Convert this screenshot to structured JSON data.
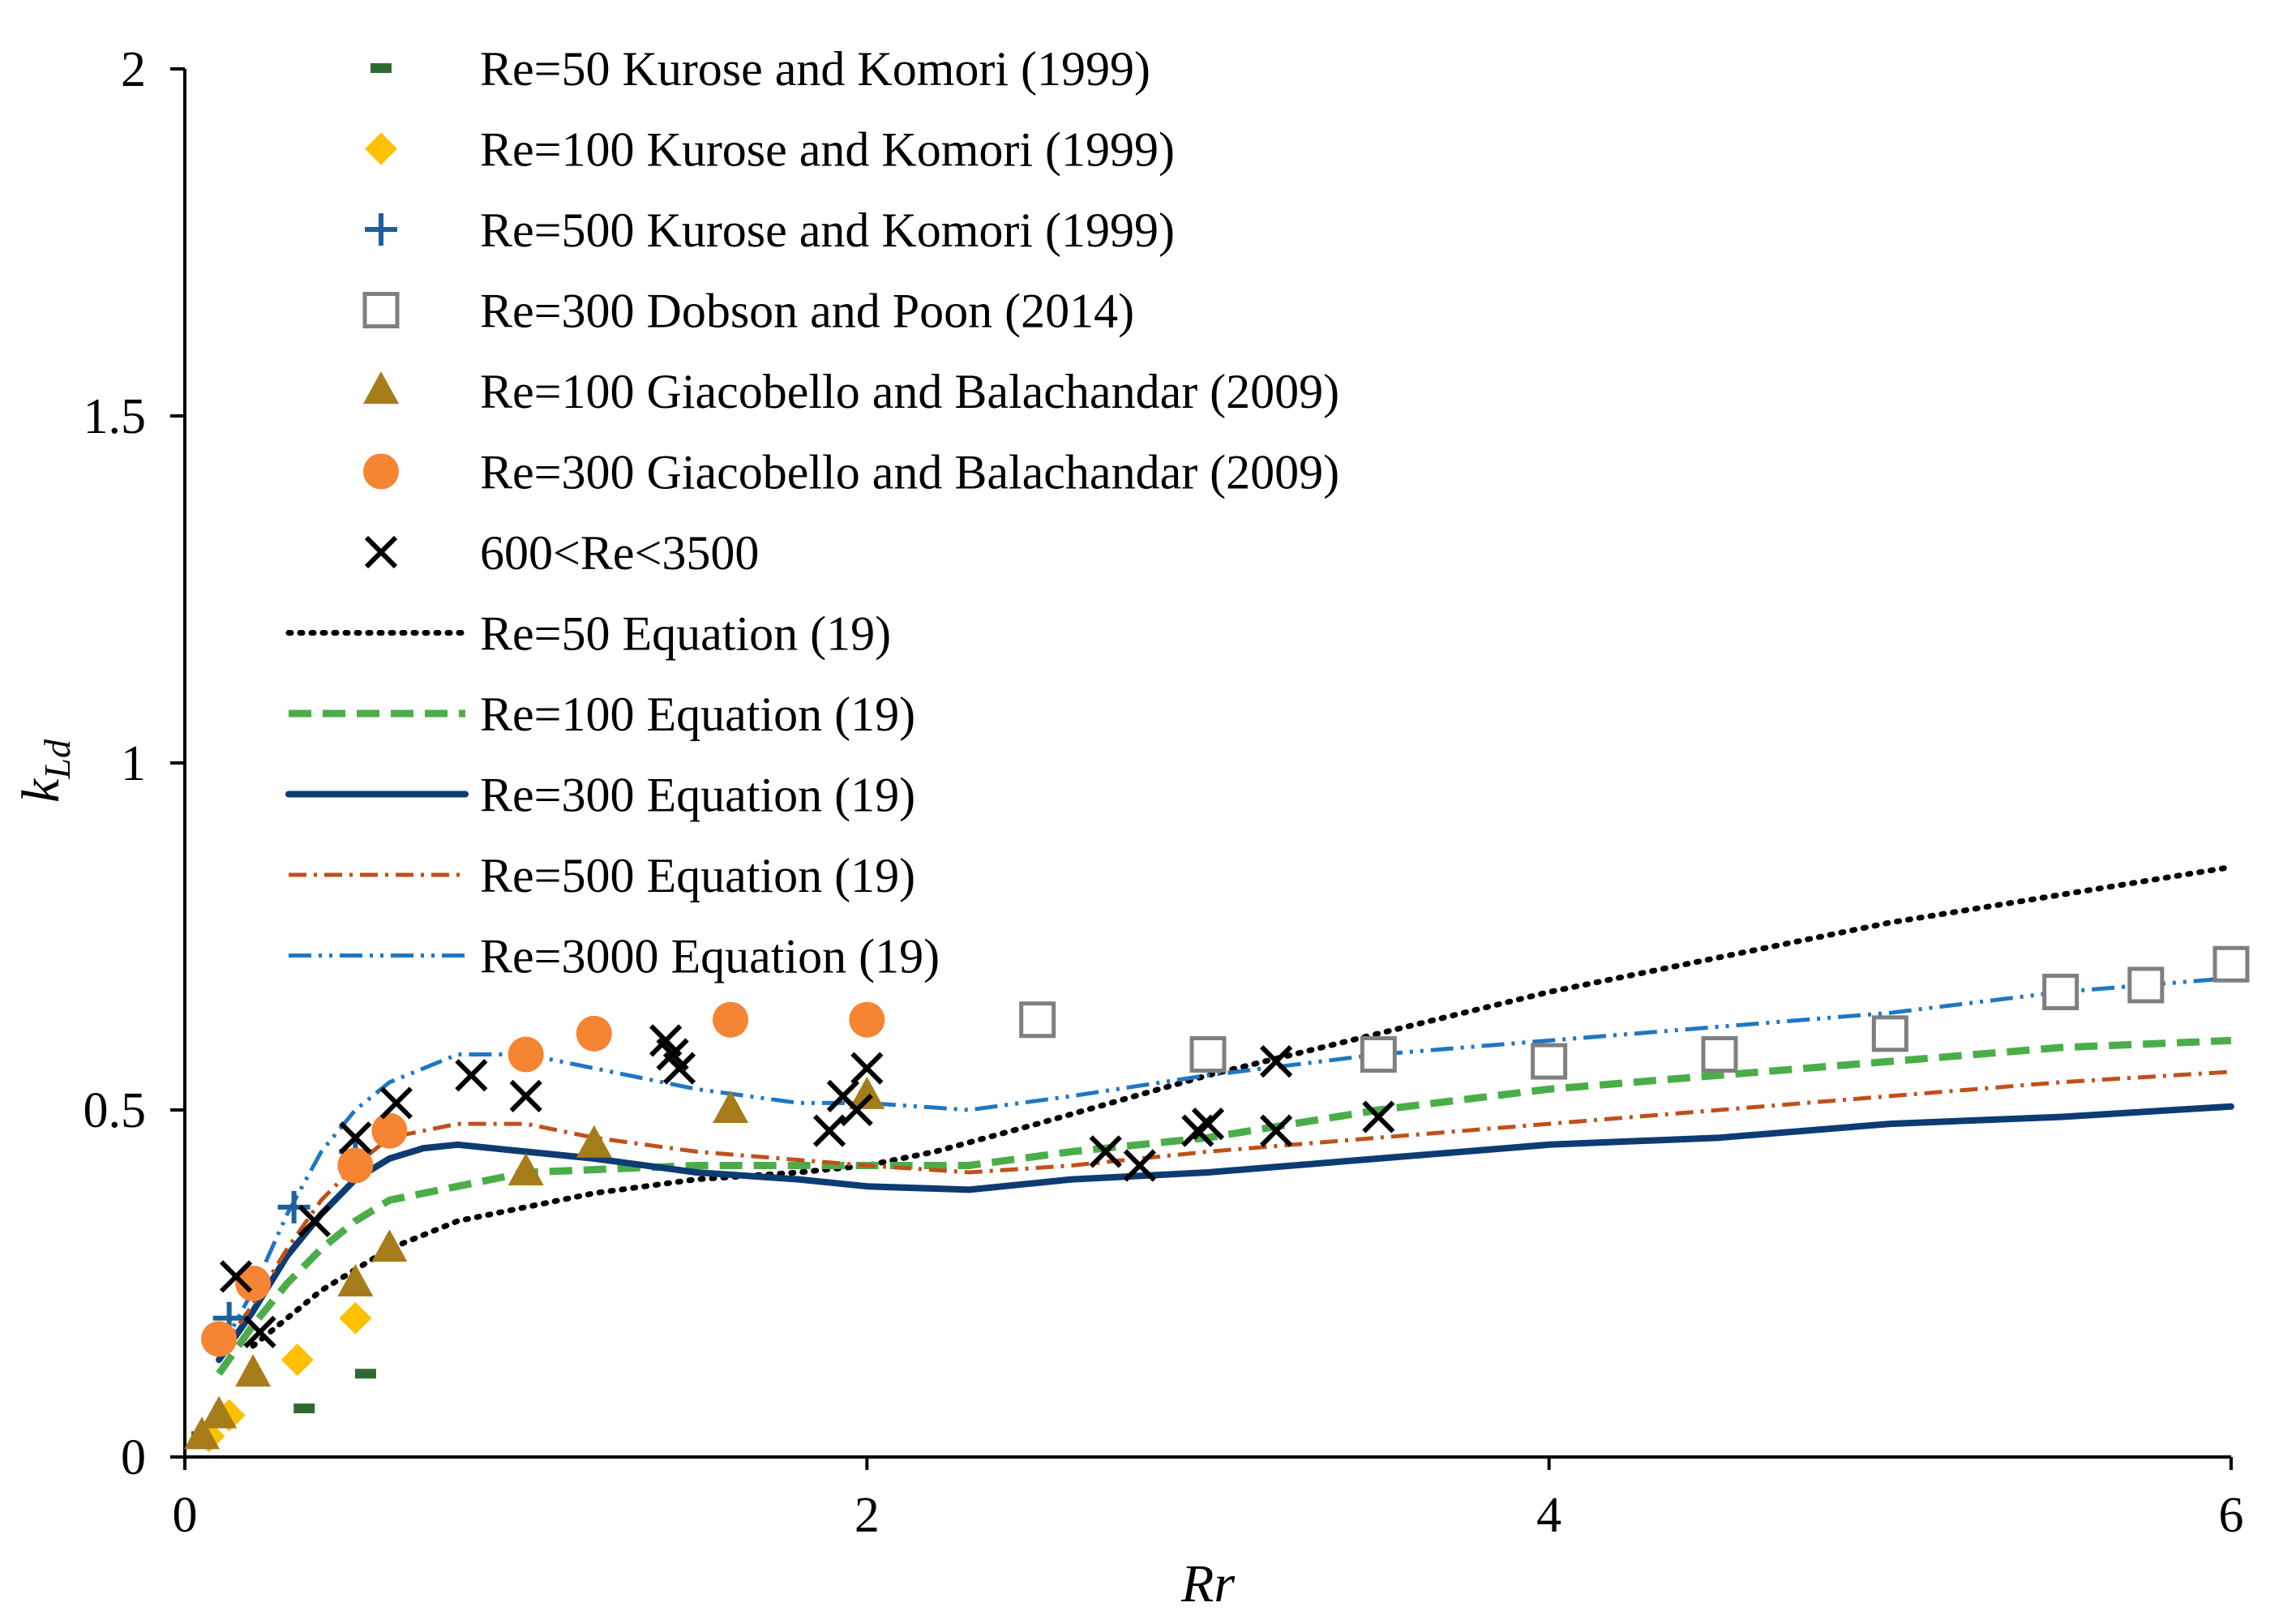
{
  "chart_data": {
    "type": "scatter",
    "title": "",
    "xlabel": "Rr",
    "ylabel_main": "k",
    "ylabel_sub": "Ld",
    "xlim": [
      0,
      6
    ],
    "ylim": [
      0,
      2
    ],
    "xticks": [
      0,
      2,
      4,
      6
    ],
    "xtick_labels": [
      "0",
      "2",
      "4",
      "6"
    ],
    "yticks": [
      0,
      0.5,
      1,
      1.5,
      2
    ],
    "ytick_labels": [
      "0",
      "0.5",
      "1",
      "1.5",
      "2"
    ],
    "grid": false,
    "legend_position": "top-left",
    "series": [
      {
        "name": "Re=50 Kurose and Komori (1999)",
        "kind": "marker",
        "marker": "dash",
        "color": "#2e6b30",
        "points": [
          [
            0.05,
            0.03
          ],
          [
            0.35,
            0.07
          ],
          [
            0.53,
            0.12
          ]
        ]
      },
      {
        "name": "Re=100 Kurose and Komori (1999)",
        "kind": "marker",
        "marker": "diamond",
        "color": "#ffc000",
        "points": [
          [
            0.07,
            0.03
          ],
          [
            0.13,
            0.06
          ],
          [
            0.33,
            0.14
          ],
          [
            0.5,
            0.2
          ]
        ]
      },
      {
        "name": "Re=500 Kurose and Komori (1999)",
        "kind": "marker",
        "marker": "plus",
        "color": "#1f5f9a",
        "points": [
          [
            0.13,
            0.2
          ],
          [
            0.32,
            0.36
          ],
          [
            0.5,
            0.44
          ]
        ]
      },
      {
        "name": "Re=300 Dobson  and Poon (2014)",
        "kind": "marker",
        "marker": "square",
        "color": "#7f7f7f",
        "points": [
          [
            2.5,
            0.63
          ],
          [
            3.0,
            0.58
          ],
          [
            3.5,
            0.58
          ],
          [
            4.0,
            0.57
          ],
          [
            4.5,
            0.58
          ],
          [
            5.0,
            0.61
          ],
          [
            5.5,
            0.67
          ],
          [
            5.75,
            0.68
          ],
          [
            6.0,
            0.71
          ]
        ]
      },
      {
        "name": "Re=100 Giacobello and Balachandar (2009)",
        "kind": "marker",
        "marker": "triangle",
        "color": "#a67c1a",
        "points": [
          [
            0.05,
            0.03
          ],
          [
            0.1,
            0.06
          ],
          [
            0.2,
            0.12
          ],
          [
            0.5,
            0.25
          ],
          [
            0.6,
            0.3
          ],
          [
            1.0,
            0.41
          ],
          [
            1.2,
            0.45
          ],
          [
            1.6,
            0.5
          ],
          [
            2.0,
            0.52
          ]
        ]
      },
      {
        "name": "Re=300 Giacobello and Balachandar (2009)",
        "kind": "marker",
        "marker": "circle",
        "color": "#f58433",
        "points": [
          [
            0.1,
            0.17
          ],
          [
            0.2,
            0.25
          ],
          [
            0.5,
            0.42
          ],
          [
            0.6,
            0.47
          ],
          [
            1.0,
            0.58
          ],
          [
            1.2,
            0.61
          ],
          [
            1.6,
            0.63
          ],
          [
            2.0,
            0.63
          ]
        ]
      },
      {
        "name": "600<Re<3500",
        "kind": "marker",
        "marker": "cross",
        "color": "#000000",
        "points": [
          [
            0.15,
            0.26
          ],
          [
            0.22,
            0.18
          ],
          [
            0.38,
            0.34
          ],
          [
            0.5,
            0.46
          ],
          [
            0.62,
            0.51
          ],
          [
            0.84,
            0.55
          ],
          [
            1.0,
            0.52
          ],
          [
            1.41,
            0.6
          ],
          [
            1.43,
            0.58
          ],
          [
            1.45,
            0.56
          ],
          [
            1.89,
            0.47
          ],
          [
            1.93,
            0.52
          ],
          [
            1.97,
            0.5
          ],
          [
            2.0,
            0.56
          ],
          [
            2.7,
            0.44
          ],
          [
            2.8,
            0.42
          ],
          [
            2.97,
            0.47
          ],
          [
            3.0,
            0.48
          ],
          [
            3.2,
            0.57
          ],
          [
            3.2,
            0.47
          ],
          [
            3.5,
            0.49
          ]
        ]
      },
      {
        "name": "Re=50 Equation (19)",
        "kind": "line",
        "dash": "dot",
        "color": "#000000",
        "points": [
          [
            0.2,
            0.16
          ],
          [
            0.4,
            0.24
          ],
          [
            0.6,
            0.3
          ],
          [
            0.8,
            0.34
          ],
          [
            1.0,
            0.36
          ],
          [
            1.2,
            0.38
          ],
          [
            1.5,
            0.4
          ],
          [
            1.8,
            0.41
          ],
          [
            2.0,
            0.42
          ],
          [
            2.2,
            0.44
          ],
          [
            2.5,
            0.48
          ],
          [
            3.0,
            0.55
          ],
          [
            3.5,
            0.61
          ],
          [
            4.0,
            0.67
          ],
          [
            4.5,
            0.72
          ],
          [
            5.0,
            0.77
          ],
          [
            5.5,
            0.81
          ],
          [
            6.0,
            0.85
          ]
        ]
      },
      {
        "name": "Re=100 Equation (19)",
        "kind": "line",
        "dash": "dash",
        "color": "#4aae48",
        "points": [
          [
            0.1,
            0.12
          ],
          [
            0.2,
            0.19
          ],
          [
            0.3,
            0.25
          ],
          [
            0.4,
            0.3
          ],
          [
            0.5,
            0.34
          ],
          [
            0.6,
            0.37
          ],
          [
            0.8,
            0.39
          ],
          [
            1.0,
            0.41
          ],
          [
            1.5,
            0.42
          ],
          [
            2.0,
            0.42
          ],
          [
            2.3,
            0.42
          ],
          [
            2.6,
            0.44
          ],
          [
            3.0,
            0.46
          ],
          [
            3.5,
            0.5
          ],
          [
            4.0,
            0.53
          ],
          [
            4.5,
            0.55
          ],
          [
            5.0,
            0.57
          ],
          [
            5.5,
            0.59
          ],
          [
            6.0,
            0.6
          ]
        ]
      },
      {
        "name": "Re=300 Equation (19)",
        "kind": "line",
        "dash": "solid",
        "color": "#0d3b73",
        "points": [
          [
            0.1,
            0.14
          ],
          [
            0.2,
            0.21
          ],
          [
            0.3,
            0.29
          ],
          [
            0.4,
            0.35
          ],
          [
            0.5,
            0.4
          ],
          [
            0.6,
            0.43
          ],
          [
            0.7,
            0.445
          ],
          [
            0.8,
            0.45
          ],
          [
            1.0,
            0.44
          ],
          [
            1.2,
            0.43
          ],
          [
            1.5,
            0.41
          ],
          [
            1.8,
            0.4
          ],
          [
            2.0,
            0.39
          ],
          [
            2.3,
            0.385
          ],
          [
            2.6,
            0.4
          ],
          [
            3.0,
            0.41
          ],
          [
            3.5,
            0.43
          ],
          [
            4.0,
            0.45
          ],
          [
            4.5,
            0.46
          ],
          [
            5.0,
            0.48
          ],
          [
            5.5,
            0.49
          ],
          [
            6.0,
            0.505
          ]
        ]
      },
      {
        "name": "Re=500 Equation (19)",
        "kind": "line",
        "dash": "dashdot",
        "color": "#c0501a",
        "points": [
          [
            0.1,
            0.15
          ],
          [
            0.2,
            0.22
          ],
          [
            0.3,
            0.3
          ],
          [
            0.4,
            0.37
          ],
          [
            0.5,
            0.42
          ],
          [
            0.6,
            0.46
          ],
          [
            0.8,
            0.48
          ],
          [
            1.0,
            0.48
          ],
          [
            1.2,
            0.46
          ],
          [
            1.5,
            0.44
          ],
          [
            2.0,
            0.42
          ],
          [
            2.3,
            0.41
          ],
          [
            2.6,
            0.42
          ],
          [
            3.0,
            0.44
          ],
          [
            3.5,
            0.46
          ],
          [
            4.0,
            0.48
          ],
          [
            4.5,
            0.5
          ],
          [
            5.0,
            0.52
          ],
          [
            5.5,
            0.54
          ],
          [
            6.0,
            0.555
          ]
        ]
      },
      {
        "name": "Re=3000 Equation (19)",
        "kind": "line",
        "dash": "dashdotdot",
        "color": "#1f77c4",
        "points": [
          [
            0.1,
            0.15
          ],
          [
            0.2,
            0.24
          ],
          [
            0.3,
            0.35
          ],
          [
            0.4,
            0.44
          ],
          [
            0.5,
            0.5
          ],
          [
            0.6,
            0.54
          ],
          [
            0.8,
            0.58
          ],
          [
            1.0,
            0.58
          ],
          [
            1.2,
            0.56
          ],
          [
            1.5,
            0.53
          ],
          [
            1.8,
            0.51
          ],
          [
            2.0,
            0.51
          ],
          [
            2.3,
            0.5
          ],
          [
            2.6,
            0.52
          ],
          [
            3.0,
            0.55
          ],
          [
            3.5,
            0.58
          ],
          [
            4.0,
            0.6
          ],
          [
            4.5,
            0.62
          ],
          [
            5.0,
            0.64
          ],
          [
            5.5,
            0.67
          ],
          [
            6.0,
            0.69
          ]
        ]
      }
    ]
  }
}
